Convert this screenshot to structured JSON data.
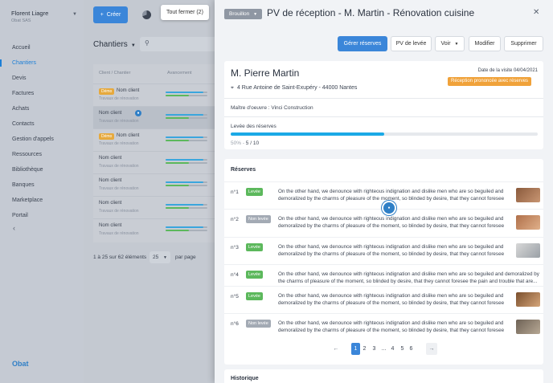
{
  "sidebar": {
    "user_name": "Florent Liagre",
    "user_company": "Obat SAS",
    "items": [
      {
        "label": "Accueil",
        "active": false
      },
      {
        "label": "Chantiers",
        "active": true
      },
      {
        "label": "Devis",
        "active": false
      },
      {
        "label": "Factures",
        "active": false
      },
      {
        "label": "Achats",
        "active": false
      },
      {
        "label": "Contacts",
        "active": false
      },
      {
        "label": "Gestion d'appels",
        "active": false
      },
      {
        "label": "Ressources",
        "active": false
      },
      {
        "label": "Bibliothèque",
        "active": false
      },
      {
        "label": "Banques",
        "active": false
      },
      {
        "label": "Marketplace",
        "active": false
      },
      {
        "label": "Portail",
        "active": false
      }
    ],
    "brand": "Obat"
  },
  "toolbar": {
    "create_label": "Créer",
    "close_all_label": "Tout fermer (2)"
  },
  "list": {
    "title": "Chantiers",
    "columns": [
      "Client / Chantier",
      "Avancement"
    ],
    "rows": [
      {
        "badge": "Démo",
        "name": "Nom client",
        "sub": "Travaux de rénovation"
      },
      {
        "badge": "",
        "name": "Nom client",
        "sub": "Travaux de rénovation",
        "selected": true
      },
      {
        "badge": "Démo",
        "name": "Nom client",
        "sub": "Travaux de rénovation"
      },
      {
        "badge": "",
        "name": "Nom client",
        "sub": "Travaux de rénovation"
      },
      {
        "badge": "",
        "name": "Nom client",
        "sub": "Travaux de rénovation"
      },
      {
        "badge": "",
        "name": "Nom client",
        "sub": "Travaux de rénovation"
      },
      {
        "badge": "",
        "name": "Nom client",
        "sub": "Travaux de rénovation"
      }
    ],
    "pager_info": "1 à 25 sur 62 éléments",
    "per_page_value": "25",
    "per_page_label": "par page"
  },
  "panel": {
    "status": "Brouillon",
    "title": "PV de réception - M. Martin - Rénovation cuisine",
    "actions": {
      "manage": "Gérer réserves",
      "pv_levee": "PV de levée",
      "voir": "Voir",
      "modifier": "Modifier",
      "supprimer": "Supprimer"
    },
    "client": {
      "name": "M. Pierre Martin",
      "address": "4 Rue Antoine de Saint-Exupéry - 44000 Nantes",
      "visit_date": "Date de la visite 04/04/2021",
      "status_tag": "Réception prononcée avec réserves",
      "maitre_oeuvre": "Maître d'oeuvre : Vinci Construction",
      "progress_label": "Levée des réserves",
      "progress_percent_text": "50%",
      "progress_count": "5 / 10",
      "progress_fraction": 0.5
    },
    "reserves": {
      "title": "Réserves",
      "items": [
        {
          "num": "n°1",
          "status": "Levée",
          "done": true,
          "text": "On the other hand, we denounce with righteous indignation and dislike men who are so beguiled and demoralized by the charms of pleasure of the moment, so blinded by desire, that they cannot foresee the...",
          "thumb": true
        },
        {
          "num": "n°2",
          "status": "Non levée",
          "done": false,
          "text": "On the other hand, we denounce with righteous indignation and dislike men who are so beguiled and demoralized by the charms of pleasure of the moment, so blinded by desire, that they cannot foresee the...",
          "thumb": true
        },
        {
          "num": "n°3",
          "status": "Levée",
          "done": true,
          "text": "On the other hand, we denounce with righteous indignation and dislike men who are so beguiled and demoralized by the charms of pleasure of the moment, so blinded by desire, that they cannot foresee the...",
          "thumb": true
        },
        {
          "num": "n°4",
          "status": "Levée",
          "done": true,
          "text": "On the other hand, we denounce with righteous indignation and dislike men who are so beguiled and demoralized by the charms of pleasure of the moment, so blinded by desire, that they cannot foresee the pain and trouble that are...",
          "thumb": false
        },
        {
          "num": "n°5",
          "status": "Levée",
          "done": true,
          "text": "On the other hand, we denounce with righteous indignation and dislike men who are so beguiled and demoralized by the charms of pleasure of the moment, so blinded by desire, that they cannot foresee the...",
          "thumb": true
        },
        {
          "num": "n°6",
          "status": "Non levée",
          "done": false,
          "text": "On the other hand, we denounce with righteous indignation and dislike men who are so beguiled and demoralized by the charms of pleasure of the moment, so blinded by desire, that they cannot foresee the...",
          "thumb": true
        }
      ],
      "pages": [
        "1",
        "2",
        "3",
        "...",
        "4",
        "5",
        "6"
      ],
      "current_page": "1",
      "prev_arrow": "←",
      "next_arrow": "→"
    },
    "history_title": "Historique"
  },
  "colors": {
    "accent": "#3b86d9",
    "progress": "#1ba9e6",
    "done": "#5cb85c",
    "todo": "#a3aab4",
    "warning": "#f0a23a",
    "demo_badge": "#e6a93d"
  }
}
